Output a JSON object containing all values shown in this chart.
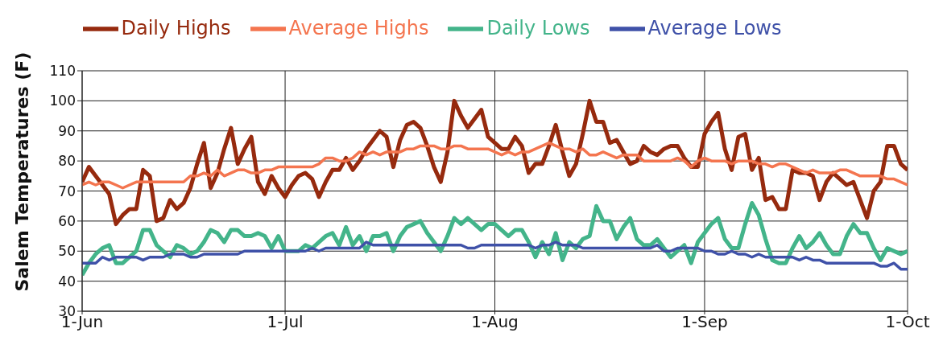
{
  "chart_data": {
    "type": "line",
    "ylabel": "Salem Temperatures (F)",
    "x": [
      "--06-01",
      "--06-02",
      "--06-03",
      "--06-04",
      "--06-05",
      "--06-06",
      "--06-07",
      "--06-08",
      "--06-09",
      "--06-10",
      "--06-11",
      "--06-12",
      "--06-13",
      "--06-14",
      "--06-15",
      "--06-16",
      "--06-17",
      "--06-18",
      "--06-19",
      "--06-20",
      "--06-21",
      "--06-22",
      "--06-23",
      "--06-24",
      "--06-25",
      "--06-26",
      "--06-27",
      "--06-28",
      "--06-29",
      "--06-30",
      "--07-01",
      "--07-02",
      "--07-03",
      "--07-04",
      "--07-05",
      "--07-06",
      "--07-07",
      "--07-08",
      "--07-09",
      "--07-10",
      "--07-11",
      "--07-12",
      "--07-13",
      "--07-14",
      "--07-15",
      "--07-16",
      "--07-17",
      "--07-18",
      "--07-19",
      "--07-20",
      "--07-21",
      "--07-22",
      "--07-23",
      "--07-24",
      "--07-25",
      "--07-26",
      "--07-27",
      "--07-28",
      "--07-29",
      "--07-30",
      "--07-31",
      "--08-01",
      "--08-02",
      "--08-03",
      "--08-04",
      "--08-05",
      "--08-06",
      "--08-07",
      "--08-08",
      "--08-09",
      "--08-10",
      "--08-11",
      "--08-12",
      "--08-13",
      "--08-14",
      "--08-15",
      "--08-16",
      "--08-17",
      "--08-18",
      "--08-19",
      "--08-20",
      "--08-21",
      "--08-22",
      "--08-23",
      "--08-24",
      "--08-25",
      "--08-26",
      "--08-27",
      "--08-28",
      "--08-29",
      "--08-30",
      "--08-31",
      "--09-01",
      "--09-02",
      "--09-03",
      "--09-04",
      "--09-05",
      "--09-06",
      "--09-07",
      "--09-08",
      "--09-09",
      "--09-10",
      "--09-11",
      "--09-12",
      "--09-13",
      "--09-14",
      "--09-15",
      "--09-16",
      "--09-17",
      "--09-18",
      "--09-19",
      "--09-20",
      "--09-21",
      "--09-22",
      "--09-23",
      "--09-24",
      "--09-25",
      "--09-26",
      "--09-27",
      "--09-28",
      "--09-29",
      "--09-30",
      "--10-01"
    ],
    "series": [
      {
        "name": "Daily Highs",
        "color": "#962a0e",
        "values": [
          73,
          78,
          75,
          72,
          69,
          59,
          62,
          64,
          64,
          77,
          75,
          60,
          61,
          67,
          64,
          66,
          71,
          79,
          86,
          71,
          76,
          84,
          91,
          79,
          84,
          88,
          73,
          69,
          75,
          71,
          68,
          72,
          75,
          76,
          74,
          68,
          73,
          77,
          77,
          81,
          77,
          80,
          84,
          87,
          90,
          88,
          78,
          87,
          92,
          93,
          91,
          85,
          78,
          73,
          83,
          100,
          95,
          91,
          94,
          97,
          88,
          86,
          84,
          84,
          88,
          85,
          76,
          79,
          79,
          85,
          92,
          83,
          75,
          79,
          89,
          100,
          93,
          93,
          86,
          87,
          83,
          79,
          80,
          85,
          83,
          82,
          84,
          85,
          85,
          81,
          78,
          78,
          89,
          93,
          96,
          84,
          77,
          88,
          89,
          77,
          81,
          67,
          68,
          64,
          64,
          77,
          76,
          76,
          75,
          67,
          73,
          76,
          74,
          72,
          73,
          67,
          61,
          70,
          73,
          85,
          85,
          79,
          77
        ]
      },
      {
        "name": "Average Highs",
        "color": "#f4754f",
        "values": [
          72,
          73,
          72,
          73,
          73,
          72,
          71,
          72,
          73,
          73,
          73,
          73,
          73,
          73,
          73,
          73,
          75,
          75,
          76,
          75,
          77,
          75,
          76,
          77,
          77,
          76,
          76,
          77,
          77,
          78,
          78,
          78,
          78,
          78,
          78,
          79,
          81,
          81,
          80,
          80,
          81,
          83,
          82,
          83,
          82,
          83,
          83,
          83,
          84,
          84,
          85,
          85,
          85,
          84,
          84,
          85,
          85,
          84,
          84,
          84,
          84,
          83,
          82,
          83,
          82,
          83,
          83,
          84,
          85,
          86,
          85,
          84,
          84,
          83,
          84,
          82,
          82,
          83,
          82,
          81,
          82,
          82,
          82,
          80,
          80,
          80,
          80,
          80,
          81,
          80,
          78,
          80,
          81,
          80,
          80,
          80,
          79,
          80,
          80,
          80,
          79,
          79,
          78,
          79,
          79,
          78,
          77,
          76,
          77,
          76,
          76,
          76,
          77,
          77,
          76,
          75,
          75,
          75,
          75,
          74,
          74,
          73,
          72
        ]
      },
      {
        "name": "Daily Lows",
        "color": "#43b48a",
        "values": [
          42,
          46,
          49,
          51,
          52,
          46,
          46,
          48,
          50,
          57,
          57,
          52,
          50,
          48,
          52,
          51,
          49,
          50,
          53,
          57,
          56,
          53,
          57,
          57,
          55,
          55,
          56,
          55,
          51,
          55,
          50,
          50,
          50,
          52,
          51,
          53,
          55,
          56,
          52,
          58,
          52,
          55,
          50,
          55,
          55,
          56,
          50,
          55,
          58,
          59,
          60,
          56,
          53,
          50,
          55,
          61,
          59,
          61,
          59,
          57,
          59,
          59,
          57,
          55,
          57,
          57,
          53,
          48,
          53,
          49,
          56,
          47,
          53,
          51,
          54,
          55,
          65,
          60,
          60,
          54,
          58,
          61,
          54,
          52,
          52,
          54,
          51,
          48,
          50,
          52,
          46,
          53,
          56,
          59,
          61,
          54,
          51,
          51,
          59,
          66,
          62,
          54,
          47,
          46,
          46,
          51,
          55,
          51,
          53,
          56,
          52,
          49,
          49,
          55,
          59,
          56,
          56,
          51,
          47,
          51,
          50,
          49,
          50
        ]
      },
      {
        "name": "Average Lows",
        "color": "#3f51a8",
        "values": [
          46,
          46,
          46,
          48,
          47,
          48,
          48,
          48,
          48,
          47,
          48,
          48,
          48,
          49,
          49,
          49,
          48,
          48,
          49,
          49,
          49,
          49,
          49,
          49,
          50,
          50,
          50,
          50,
          50,
          50,
          50,
          50,
          50,
          50,
          51,
          50,
          51,
          51,
          51,
          51,
          51,
          51,
          53,
          52,
          52,
          52,
          52,
          52,
          52,
          52,
          52,
          52,
          52,
          52,
          52,
          52,
          52,
          51,
          51,
          52,
          52,
          52,
          52,
          52,
          52,
          52,
          52,
          51,
          52,
          52,
          53,
          52,
          52,
          52,
          51,
          51,
          51,
          51,
          51,
          51,
          51,
          51,
          51,
          51,
          51,
          52,
          50,
          50,
          51,
          51,
          51,
          51,
          50,
          50,
          49,
          49,
          50,
          49,
          49,
          48,
          49,
          48,
          48,
          48,
          48,
          48,
          47,
          48,
          47,
          47,
          46,
          46,
          46,
          46,
          46,
          46,
          46,
          46,
          45,
          45,
          46,
          44,
          44
        ]
      }
    ],
    "xlim": [
      "--06-01",
      "--10-01"
    ],
    "xticks": [
      {
        "value": "--06-01",
        "label": "1-Jun"
      },
      {
        "value": "--07-01",
        "label": "1-Jul"
      },
      {
        "value": "--08-01",
        "label": "1-Aug"
      },
      {
        "value": "--09-01",
        "label": "1-Sep"
      },
      {
        "value": "--10-01",
        "label": "1-Oct"
      }
    ],
    "ylim": [
      30,
      110
    ],
    "yticks": [
      30,
      40,
      50,
      60,
      70,
      80,
      90,
      100,
      110
    ],
    "grid": true,
    "legend": "top",
    "marker": "none",
    "line_style": "solid"
  }
}
